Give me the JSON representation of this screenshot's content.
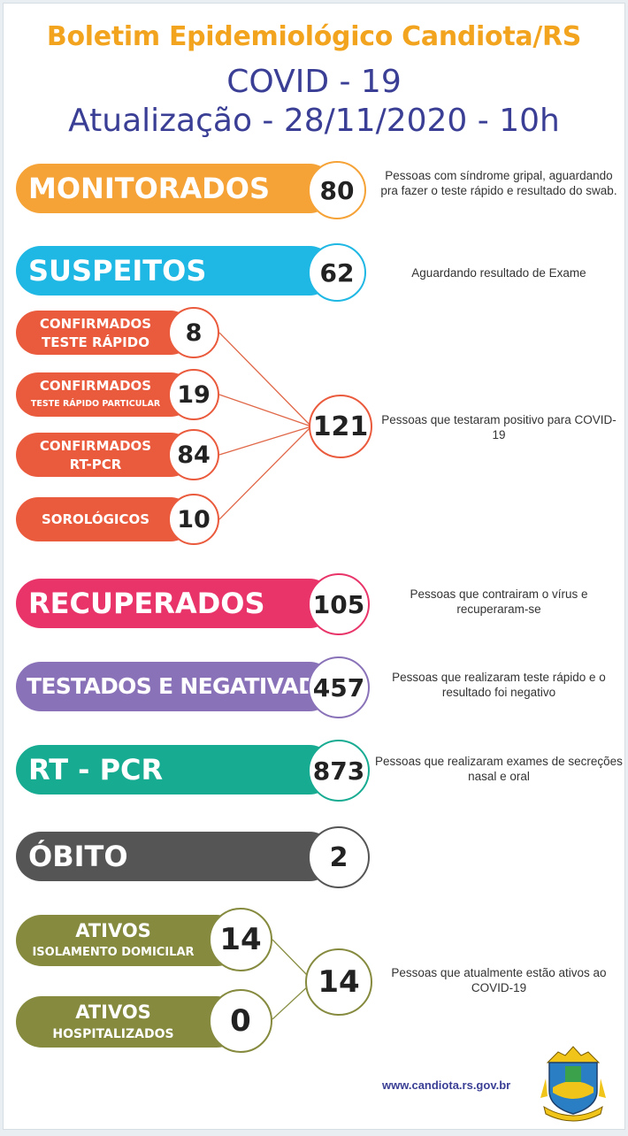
{
  "header": {
    "title": "Boletim Epidemiológico Candiota/RS",
    "subtitle": "COVID - 19",
    "update": "Atualização - 28/11/2020 - 10h"
  },
  "monitorados": {
    "label": "MONITORADOS",
    "value": "80",
    "desc": "Pessoas com síndrome gripal, aguardando pra fazer o teste rápido e resultado do swab.",
    "color": "#f5a236"
  },
  "suspeitos": {
    "label": "SUSPEITOS",
    "value": "62",
    "desc": "Aguardando resultado de Exame",
    "color": "#1fb7e3"
  },
  "confirmados": {
    "color": "#ea5a3c",
    "teste_rapido": {
      "line1": "CONFIRMADOS",
      "line2": "TESTE RÁPIDO",
      "value": "8"
    },
    "particular": {
      "line1": "CONFIRMADOS",
      "line2": "TESTE RÁPIDO PARTICULAR",
      "value": "19"
    },
    "rtpcr": {
      "line1": "CONFIRMADOS",
      "line2": "RT-PCR",
      "value": "84"
    },
    "sorologicos": {
      "line1": "SOROLÓGICOS",
      "value": "10"
    },
    "total": "121",
    "desc": "Pessoas que testaram positivo para COVID-19"
  },
  "recuperados": {
    "label": "RECUPERADOS",
    "value": "105",
    "desc": "Pessoas que contrairam o vírus e recuperaram-se",
    "color": "#e83468"
  },
  "testados": {
    "label": "TESTADOS E NEGATIVADOS",
    "value": "457",
    "desc": "Pessoas que realizaram teste rápido e o resultado foi negativo",
    "color": "#8a72b8"
  },
  "rtpcr": {
    "label": "RT - PCR",
    "value": "873",
    "desc": "Pessoas que realizaram exames de secreções nasal e oral",
    "color": "#17ab92"
  },
  "obito": {
    "label": "ÓBITO",
    "value": "2",
    "color": "#555555"
  },
  "ativos": {
    "color": "#858a3e",
    "isolamento": {
      "line1": "ATIVOS",
      "line2": "ISOLAMENTO DOMICILAR",
      "value": "14"
    },
    "hospitalizados": {
      "line1": "ATIVOS",
      "line2": "HOSPITALIZADOS",
      "value": "0"
    },
    "total": "14",
    "desc": "Pessoas que atualmente estão ativos ao COVID-19"
  },
  "footer": {
    "url": "www.candiota.rs.gov.br",
    "crest_icon": "coat-of-arms-icon"
  }
}
